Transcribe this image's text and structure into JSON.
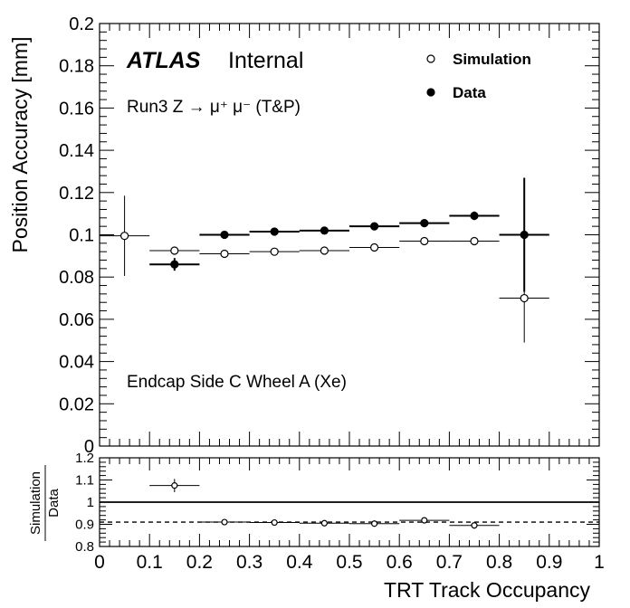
{
  "chart_data": [
    {
      "type": "scatter",
      "panel": "main",
      "xlabel": "",
      "ylabel": "Position Accuracy [mm]",
      "xlim": [
        0,
        1
      ],
      "ylim": [
        0,
        0.2
      ],
      "yticks": [
        "0",
        "0.02",
        "0.04",
        "0.06",
        "0.08",
        "0.1",
        "0.12",
        "0.14",
        "0.16",
        "0.18",
        "0.2"
      ],
      "experiment": "ATLAS",
      "status": "Internal",
      "process": "Run3 Z → μ⁺ μ⁻ (T&P)",
      "region": "Endcap Side C Wheel A (Xe)",
      "legend_placement": "top-right",
      "series": [
        {
          "name": "Simulation",
          "marker": "open-circle",
          "x": [
            0.05,
            0.15,
            0.25,
            0.35,
            0.45,
            0.55,
            0.65,
            0.75,
            0.85
          ],
          "xerr": 0.05,
          "y": [
            0.0995,
            0.0925,
            0.091,
            0.092,
            0.0925,
            0.094,
            0.097,
            0.097,
            0.07
          ],
          "yerr": [
            0.019,
            0.0012,
            0.0008,
            0.0008,
            0.0008,
            0.0008,
            0.0008,
            0.0008,
            0.021
          ]
        },
        {
          "name": "Data",
          "marker": "filled-circle",
          "x": [
            0.15,
            0.25,
            0.35,
            0.45,
            0.55,
            0.65,
            0.75,
            0.85
          ],
          "xerr": 0.05,
          "y": [
            0.086,
            0.1,
            0.1015,
            0.102,
            0.104,
            0.1055,
            0.109,
            0.1
          ],
          "yerr": [
            0.003,
            0.001,
            0.001,
            0.001,
            0.001,
            0.001,
            0.002,
            0.027
          ]
        }
      ]
    },
    {
      "type": "scatter",
      "panel": "ratio",
      "xlabel": "TRT Track Occupancy",
      "ylabel_numerator": "Simulation",
      "ylabel_denominator": "Data",
      "xlim": [
        0,
        1
      ],
      "ylim": [
        0.8,
        1.2
      ],
      "xticks": [
        "0",
        "0.1",
        "0.2",
        "0.3",
        "0.4",
        "0.5",
        "0.6",
        "0.7",
        "0.8",
        "0.9",
        "1"
      ],
      "yticks": [
        "0.8",
        "0.9",
        "1",
        "1.1",
        "1.2"
      ],
      "reference_line": 1.0,
      "mean_line": 0.91,
      "series": [
        {
          "name": "Simulation/Data",
          "marker": "open-circle",
          "x": [
            0.15,
            0.25,
            0.35,
            0.45,
            0.55,
            0.65,
            0.75
          ],
          "xerr": 0.05,
          "y": [
            1.075,
            0.91,
            0.908,
            0.905,
            0.903,
            0.918,
            0.895
          ],
          "yerr": [
            0.03,
            0.005,
            0.005,
            0.005,
            0.005,
            0.005,
            0.015
          ]
        }
      ]
    }
  ]
}
